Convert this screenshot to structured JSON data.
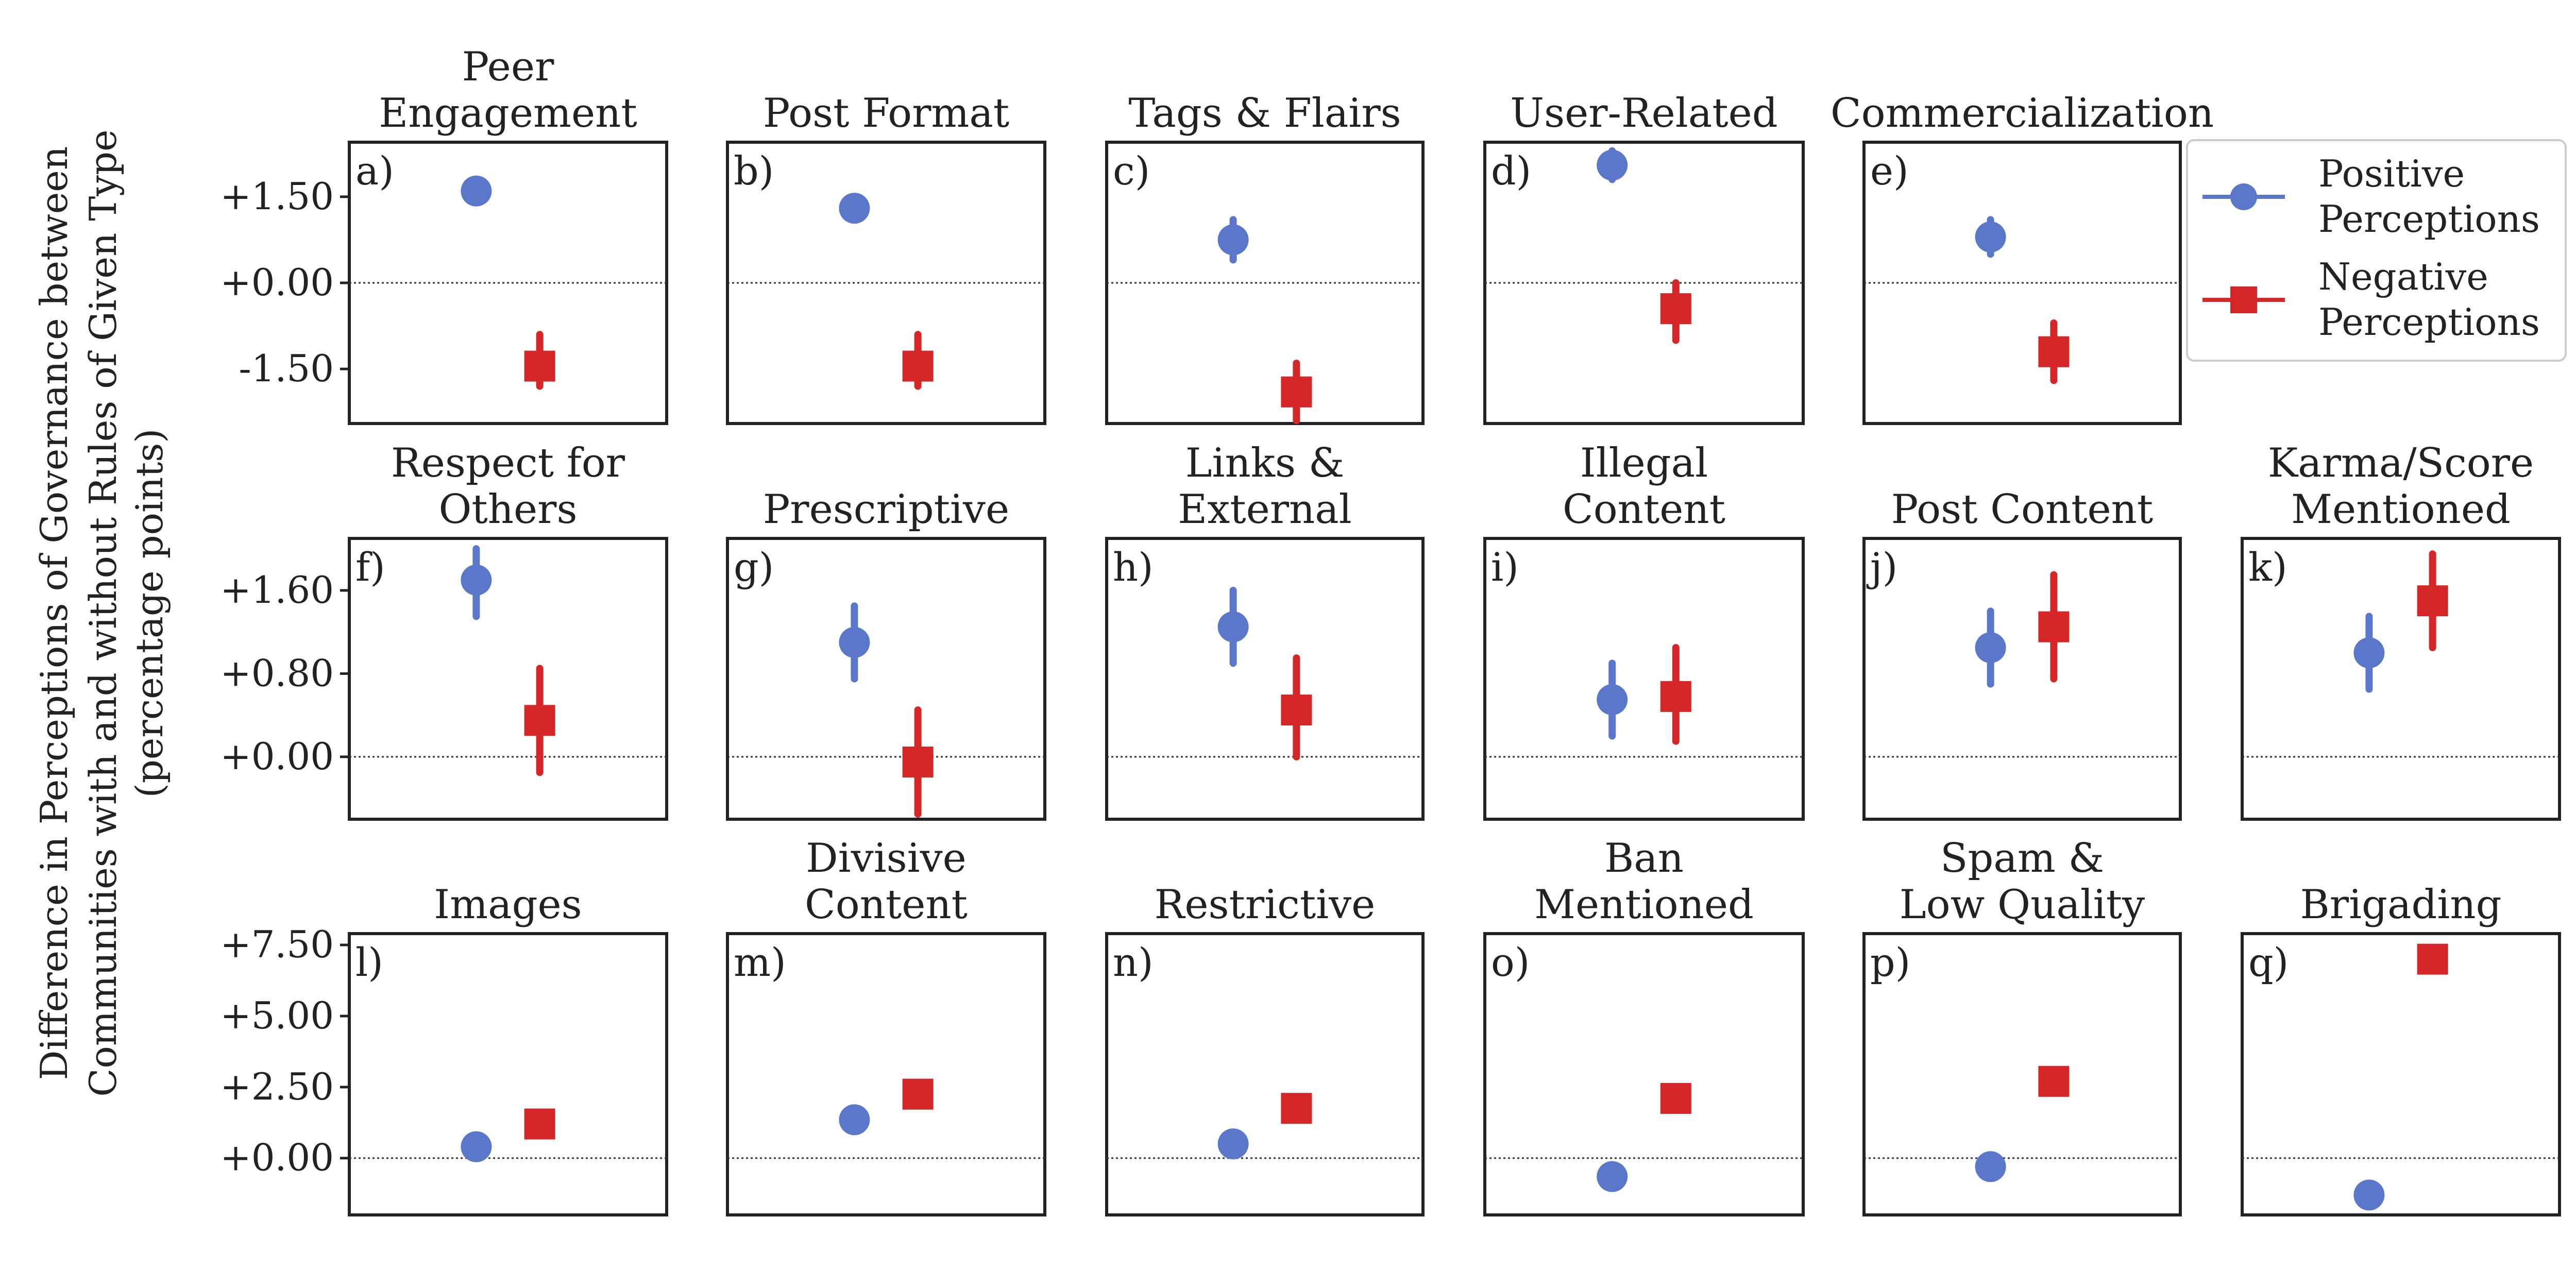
{
  "figure": {
    "ylabel_lines": [
      "Difference in Perceptions of Governance between",
      "Communities with and without Rules of Given Type",
      "(percentage points)"
    ]
  },
  "legend": {
    "placement": "right of top row",
    "entries": [
      {
        "label_lines": [
          "Positive",
          "Perceptions"
        ],
        "color": "#5B77C9",
        "marker": "circle"
      },
      {
        "label_lines": [
          "Negative",
          "Perceptions"
        ],
        "color": "#D62728",
        "marker": "square"
      }
    ]
  },
  "colors": {
    "positive": "#5B77C9",
    "negative": "#D62728",
    "axes": "#222222",
    "zero_line": "#333333"
  },
  "chart_data": [
    {
      "type": "scatter",
      "panel": "a)",
      "title_lines": [
        "Peer",
        "Engagement"
      ],
      "row": 0,
      "ylim": [
        -2.45,
        2.45
      ],
      "yticks": [
        1.5,
        0,
        -1.5
      ],
      "ytick_labels": [
        "+1.50",
        "+0.00",
        "-1.50"
      ],
      "series": [
        {
          "name": "Positive Perceptions",
          "value": 1.6,
          "ci": [
            1.4,
            1.8
          ]
        },
        {
          "name": "Negative Perceptions",
          "value": -1.45,
          "ci": [
            -1.8,
            -0.9
          ]
        }
      ]
    },
    {
      "type": "scatter",
      "panel": "b)",
      "title_lines": [
        "Post Format"
      ],
      "row": 0,
      "ylim": [
        -2.45,
        2.45
      ],
      "series": [
        {
          "name": "Positive Perceptions",
          "value": 1.3,
          "ci": [
            1.1,
            1.5
          ]
        },
        {
          "name": "Negative Perceptions",
          "value": -1.45,
          "ci": [
            -1.8,
            -0.9
          ]
        }
      ]
    },
    {
      "type": "scatter",
      "panel": "c)",
      "title_lines": [
        "Tags & Flairs"
      ],
      "row": 0,
      "ylim": [
        -2.45,
        2.45
      ],
      "series": [
        {
          "name": "Positive Perceptions",
          "value": 0.75,
          "ci": [
            0.4,
            1.1
          ]
        },
        {
          "name": "Negative Perceptions",
          "value": -1.9,
          "ci": [
            -2.4,
            -1.4
          ]
        }
      ]
    },
    {
      "type": "scatter",
      "panel": "d)",
      "title_lines": [
        "User-Related"
      ],
      "row": 0,
      "ylim": [
        -2.45,
        2.45
      ],
      "series": [
        {
          "name": "Positive Perceptions",
          "value": 2.05,
          "ci": [
            1.8,
            2.3
          ]
        },
        {
          "name": "Negative Perceptions",
          "value": -0.45,
          "ci": [
            -1.0,
            0.0
          ]
        }
      ]
    },
    {
      "type": "scatter",
      "panel": "e)",
      "title_lines": [
        "Commercialization"
      ],
      "row": 0,
      "ylim": [
        -2.45,
        2.45
      ],
      "series": [
        {
          "name": "Positive Perceptions",
          "value": 0.8,
          "ci": [
            0.5,
            1.1
          ]
        },
        {
          "name": "Negative Perceptions",
          "value": -1.2,
          "ci": [
            -1.7,
            -0.7
          ]
        }
      ]
    },
    {
      "type": "scatter",
      "panel": "f)",
      "title_lines": [
        "Respect for",
        "Others"
      ],
      "row": 1,
      "ylim": [
        -0.6,
        2.1
      ],
      "yticks": [
        1.6,
        0.8,
        0
      ],
      "ytick_labels": [
        "+1.60",
        "+0.80",
        "+0.00"
      ],
      "series": [
        {
          "name": "Positive Perceptions",
          "value": 1.7,
          "ci": [
            1.35,
            2.0
          ]
        },
        {
          "name": "Negative Perceptions",
          "value": 0.35,
          "ci": [
            -0.15,
            0.85
          ]
        }
      ]
    },
    {
      "type": "scatter",
      "panel": "g)",
      "title_lines": [
        "Prescriptive"
      ],
      "row": 1,
      "ylim": [
        -0.6,
        2.1
      ],
      "series": [
        {
          "name": "Positive Perceptions",
          "value": 1.1,
          "ci": [
            0.75,
            1.45
          ]
        },
        {
          "name": "Negative Perceptions",
          "value": -0.05,
          "ci": [
            -0.55,
            0.45
          ]
        }
      ]
    },
    {
      "type": "scatter",
      "panel": "h)",
      "title_lines": [
        "Links &",
        "External"
      ],
      "row": 1,
      "ylim": [
        -0.6,
        2.1
      ],
      "series": [
        {
          "name": "Positive Perceptions",
          "value": 1.25,
          "ci": [
            0.9,
            1.6
          ]
        },
        {
          "name": "Negative Perceptions",
          "value": 0.45,
          "ci": [
            0.0,
            0.95
          ]
        }
      ]
    },
    {
      "type": "scatter",
      "panel": "i)",
      "title_lines": [
        "Illegal",
        "Content"
      ],
      "row": 1,
      "ylim": [
        -0.6,
        2.1
      ],
      "series": [
        {
          "name": "Positive Perceptions",
          "value": 0.55,
          "ci": [
            0.2,
            0.9
          ]
        },
        {
          "name": "Negative Perceptions",
          "value": 0.58,
          "ci": [
            0.15,
            1.05
          ]
        }
      ]
    },
    {
      "type": "scatter",
      "panel": "j)",
      "title_lines": [
        "Post Content"
      ],
      "row": 1,
      "ylim": [
        -0.6,
        2.1
      ],
      "series": [
        {
          "name": "Positive Perceptions",
          "value": 1.05,
          "ci": [
            0.7,
            1.4
          ]
        },
        {
          "name": "Negative Perceptions",
          "value": 1.25,
          "ci": [
            0.75,
            1.75
          ]
        }
      ]
    },
    {
      "type": "scatter",
      "panel": "k)",
      "title_lines": [
        "Karma/Score",
        "Mentioned"
      ],
      "row": 1,
      "ylim": [
        -0.6,
        2.1
      ],
      "series": [
        {
          "name": "Positive Perceptions",
          "value": 1.0,
          "ci": [
            0.65,
            1.35
          ]
        },
        {
          "name": "Negative Perceptions",
          "value": 1.5,
          "ci": [
            1.05,
            1.95
          ]
        }
      ]
    },
    {
      "type": "scatter",
      "panel": "l)",
      "title_lines": [
        "Images"
      ],
      "row": 2,
      "ylim": [
        -2.0,
        7.9
      ],
      "yticks": [
        7.5,
        5,
        2.5,
        0
      ],
      "ytick_labels": [
        "+7.50",
        "+5.00",
        "+2.50",
        "+0.00"
      ],
      "series": [
        {
          "name": "Positive Perceptions",
          "value": 0.4,
          "ci": [
            0.3,
            0.5
          ]
        },
        {
          "name": "Negative Perceptions",
          "value": 1.2,
          "ci": [
            1.0,
            1.4
          ]
        }
      ]
    },
    {
      "type": "scatter",
      "panel": "m)",
      "title_lines": [
        "Divisive",
        "Content"
      ],
      "row": 2,
      "ylim": [
        -2.0,
        7.9
      ],
      "series": [
        {
          "name": "Positive Perceptions",
          "value": 1.35,
          "ci": [
            1.25,
            1.45
          ]
        },
        {
          "name": "Negative Perceptions",
          "value": 2.25,
          "ci": [
            2.05,
            2.45
          ]
        }
      ]
    },
    {
      "type": "scatter",
      "panel": "n)",
      "title_lines": [
        "Restrictive"
      ],
      "row": 2,
      "ylim": [
        -2.0,
        7.9
      ],
      "series": [
        {
          "name": "Positive Perceptions",
          "value": 0.5,
          "ci": [
            0.4,
            0.6
          ]
        },
        {
          "name": "Negative Perceptions",
          "value": 1.75,
          "ci": [
            1.5,
            2.0
          ]
        }
      ]
    },
    {
      "type": "scatter",
      "panel": "o)",
      "title_lines": [
        "Ban",
        "Mentioned"
      ],
      "row": 2,
      "ylim": [
        -2.0,
        7.9
      ],
      "series": [
        {
          "name": "Positive Perceptions",
          "value": -0.65,
          "ci": [
            -0.75,
            -0.55
          ]
        },
        {
          "name": "Negative Perceptions",
          "value": 2.1,
          "ci": [
            1.9,
            2.3
          ]
        }
      ]
    },
    {
      "type": "scatter",
      "panel": "p)",
      "title_lines": [
        "Spam &",
        "Low Quality"
      ],
      "row": 2,
      "ylim": [
        -2.0,
        7.9
      ],
      "series": [
        {
          "name": "Positive Perceptions",
          "value": -0.3,
          "ci": [
            -0.4,
            -0.2
          ]
        },
        {
          "name": "Negative Perceptions",
          "value": 2.7,
          "ci": [
            2.5,
            2.9
          ]
        }
      ]
    },
    {
      "type": "scatter",
      "panel": "q)",
      "title_lines": [
        "Brigading"
      ],
      "row": 2,
      "ylim": [
        -2.0,
        7.9
      ],
      "series": [
        {
          "name": "Positive Perceptions",
          "value": -1.3,
          "ci": [
            -1.4,
            -1.2
          ]
        },
        {
          "name": "Negative Perceptions",
          "value": 7.0,
          "ci": [
            6.8,
            7.2
          ]
        }
      ]
    }
  ]
}
